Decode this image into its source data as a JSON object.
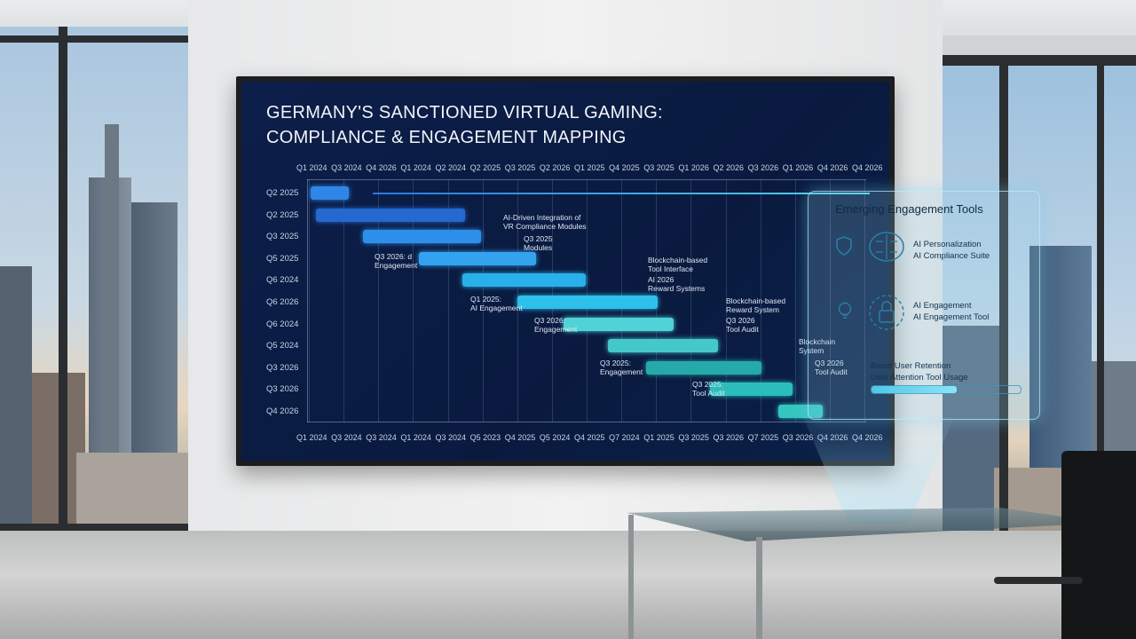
{
  "screen": {
    "title_line1": "GERMANY'S SANCTIONED VIRTUAL GAMING:",
    "title_line2": "COMPLIANCE & ENGAGEMENT MAPPING",
    "top_axis_ticks": [
      "Q1 2024",
      "Q3 2024",
      "Q4 2026",
      "Q1 2024",
      "Q2 2024",
      "Q2 2025",
      "Q3 2025",
      "Q2 2026",
      "Q1 2025",
      "Q4 2025",
      "Q3 2025",
      "Q1 2026",
      "Q2 2026",
      "Q3 2026",
      "Q1 2026",
      "Q4 2026",
      "Q4 2026"
    ],
    "bottom_axis_ticks": [
      "Q1 2024",
      "Q3 2024",
      "Q3 2024",
      "Q1 2024",
      "Q3 2024",
      "Q5 2023",
      "Q4 2025",
      "Q5 2024",
      "Q4 2025",
      "Q7 2024",
      "Q1 2025",
      "Q3 2025",
      "Q3 2026",
      "Q7 2025",
      "Q3 2026",
      "Q4 2026",
      "Q4 2026"
    ],
    "rows": [
      {
        "label": "Q2 2025",
        "start": 0.0,
        "end": 0.07,
        "color": "#2f86e6"
      },
      {
        "label": "Q2 2025",
        "start": 0.01,
        "end": 0.28,
        "color": "#2468d0"
      },
      {
        "label": "Q3 2025",
        "start": 0.095,
        "end": 0.31,
        "color": "#2e8fea"
      },
      {
        "label": "Q5 2025",
        "start": 0.196,
        "end": 0.41,
        "color": "#33a2ef"
      },
      {
        "label": "Q6 2024",
        "start": 0.276,
        "end": 0.5,
        "color": "#28b0ea"
      },
      {
        "label": "Q6 2026",
        "start": 0.376,
        "end": 0.63,
        "color": "#2cc0ea"
      },
      {
        "label": "Q6 2024",
        "start": 0.46,
        "end": 0.66,
        "color": "#4fd3d6"
      },
      {
        "label": "Q5 2024",
        "start": 0.54,
        "end": 0.74,
        "color": "#44c9c8"
      },
      {
        "label": "Q3 2026",
        "start": 0.61,
        "end": 0.82,
        "color": "#26a9a9"
      },
      {
        "label": "Q3 2026",
        "start": 0.726,
        "end": 0.876,
        "color": "#2bbdbc"
      },
      {
        "label": "Q4 2026",
        "start": 0.85,
        "end": 0.93,
        "color": "#33c6bf"
      }
    ],
    "annotations": [
      {
        "text": "AI-Driven Integration of\nVR Compliance Modules",
        "row": 1
      },
      {
        "text": "Q3 2025\nModules",
        "row": 2
      },
      {
        "text": "Q3 2026: d\nEngagement",
        "row": 3
      },
      {
        "text": "Blockchain-based\nTool Interface",
        "row": 3
      },
      {
        "text": "AI 2026\nReward Systems",
        "row": 4
      },
      {
        "text": "Q1 2025:\nAI Engagement",
        "row": 5
      },
      {
        "text": "Blockchain-based\nReward System",
        "row": 5
      },
      {
        "text": "Q3 2026:\nEngagement",
        "row": 6
      },
      {
        "text": "Q3 2026\nTool Audit",
        "row": 6
      },
      {
        "text": "Blockchain\nSystem",
        "row": 7
      },
      {
        "text": "Q3 2025:\nEngagement",
        "row": 8
      },
      {
        "text": "Q3 2026\nTool Audit",
        "row": 8
      },
      {
        "text": "Q3 2025:\nTool Audit",
        "row": 9
      }
    ]
  },
  "holo_panel": {
    "title": "Emerging Engagement Tools",
    "item1_line1": "AI Personalization",
    "item1_line2": "AI Compliance Suite",
    "item2_line1": "AI Engagement",
    "item2_line2": "AI Engagement Tool",
    "retention_line1": "Boost User Retention",
    "retention_line2": "User Attention Tool Usage",
    "retention_progress": 0.57,
    "icons": [
      "shield-icon",
      "brain-circuit-icon",
      "lightbulb-icon",
      "lock-circuit-icon"
    ]
  }
}
